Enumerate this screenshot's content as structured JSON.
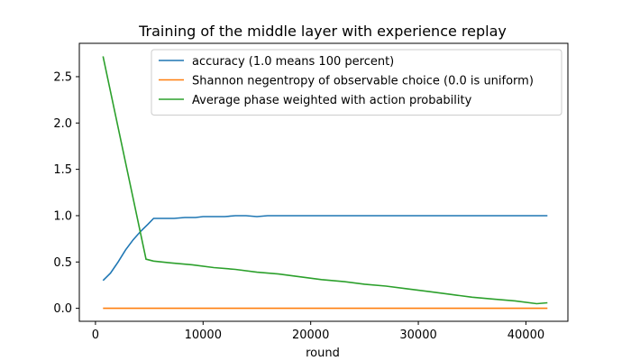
{
  "chart_data": {
    "type": "line",
    "title": "Training of the middle layer with experience replay",
    "xlabel": "round",
    "ylabel": "",
    "xlim": [
      -1500,
      43900
    ],
    "ylim": [
      -0.14,
      2.86
    ],
    "xticks": [
      0,
      10000,
      20000,
      30000,
      40000
    ],
    "xtick_labels": [
      "0",
      "10000",
      "20000",
      "30000",
      "40000"
    ],
    "yticks": [
      0.0,
      0.5,
      1.0,
      1.5,
      2.0,
      2.5
    ],
    "ytick_labels": [
      "0.0",
      "0.5",
      "1.0",
      "1.5",
      "2.0",
      "2.5"
    ],
    "grid": false,
    "legend_position": "top-right",
    "series": [
      {
        "name": "accuracy (1.0 means 100 percent)",
        "color": "#1f77b4",
        "x": [
          700,
          1400,
          2100,
          2800,
          3500,
          4200,
          4900,
          5400,
          6300,
          7300,
          8300,
          9300,
          10000,
          11000,
          12000,
          13000,
          14000,
          15000,
          16000,
          17000,
          18000,
          19000,
          20000,
          21000,
          22000,
          23000,
          24000,
          25000,
          26000,
          27000,
          28000,
          30000,
          32000,
          34000,
          36000,
          38000,
          40000,
          42000
        ],
        "y": [
          0.3,
          0.38,
          0.5,
          0.63,
          0.74,
          0.83,
          0.91,
          0.97,
          0.97,
          0.97,
          0.98,
          0.98,
          0.99,
          0.99,
          0.99,
          1.0,
          1.0,
          0.99,
          1.0,
          1.0,
          1.0,
          1.0,
          1.0,
          1.0,
          1.0,
          1.0,
          1.0,
          1.0,
          1.0,
          1.0,
          1.0,
          1.0,
          1.0,
          1.0,
          1.0,
          1.0,
          1.0,
          1.0
        ]
      },
      {
        "name": "Shannon negentropy of observable choice (0.0 is uniform)",
        "color": "#ff7f0e",
        "x": [
          700,
          42000
        ],
        "y": [
          0.0,
          0.0
        ]
      },
      {
        "name": "Average phase weighted with action probability",
        "color": "#2ca02c",
        "x": [
          700,
          4700,
          5400,
          7000,
          9000,
          11000,
          13000,
          15000,
          17000,
          19000,
          21000,
          23000,
          25000,
          27000,
          29000,
          31000,
          33000,
          35000,
          37000,
          39000,
          41000,
          42000
        ],
        "y": [
          2.72,
          0.53,
          0.51,
          0.49,
          0.47,
          0.44,
          0.42,
          0.39,
          0.37,
          0.34,
          0.31,
          0.29,
          0.26,
          0.24,
          0.21,
          0.18,
          0.15,
          0.12,
          0.1,
          0.08,
          0.05,
          0.06
        ]
      }
    ]
  }
}
